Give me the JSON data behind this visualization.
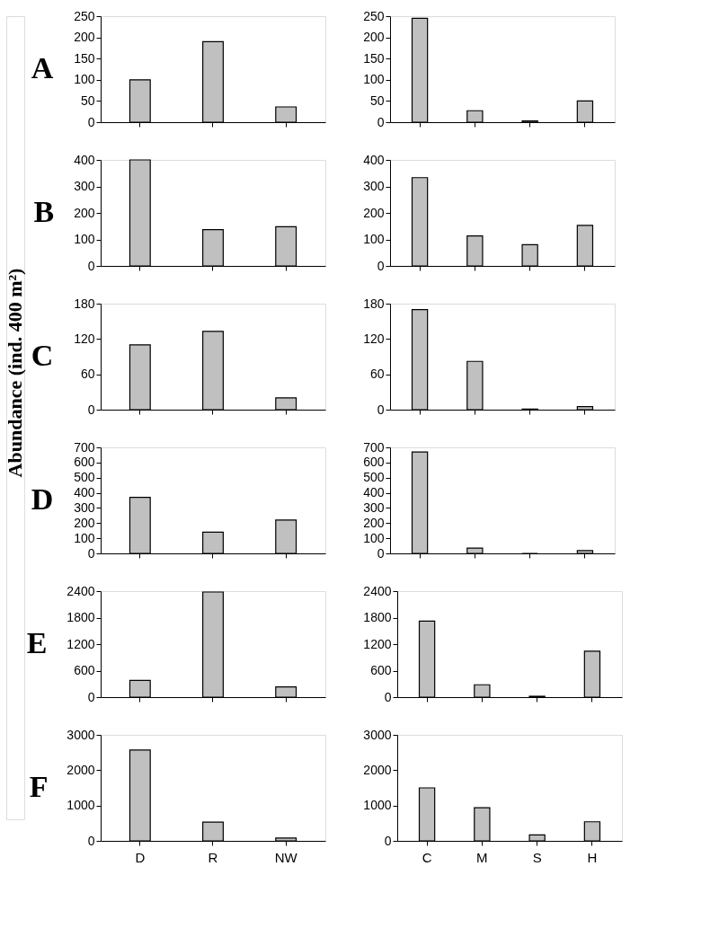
{
  "chart_data": [
    {
      "type": "bar",
      "title": "A",
      "categories": [
        null,
        null,
        null
      ],
      "values": [
        100,
        190,
        36
      ],
      "color": "#c0c0c0",
      "ylim": [
        0,
        250
      ],
      "yticks": [
        0,
        50,
        100,
        150,
        200,
        250
      ],
      "grid": false,
      "tick_labels": "y"
    },
    {
      "type": "bar",
      "categories": [
        null,
        null,
        null,
        null
      ],
      "values": [
        245,
        27,
        3,
        50
      ],
      "color": "#c0c0c0",
      "ylim": [
        0,
        250
      ],
      "yticks": [
        0,
        50,
        100,
        150,
        200,
        250
      ],
      "grid": false,
      "tick_labels": "y"
    },
    {
      "type": "bar",
      "title": "B",
      "categories": [
        null,
        null,
        null
      ],
      "values": [
        400,
        137,
        148
      ],
      "color": "#c0c0c0",
      "ylim": [
        0,
        400
      ],
      "yticks": [
        0,
        100,
        200,
        300,
        400
      ],
      "grid": false,
      "tick_labels": "y"
    },
    {
      "type": "bar",
      "categories": [
        null,
        null,
        null,
        null
      ],
      "values": [
        333,
        113,
        80,
        153
      ],
      "color": "#c0c0c0",
      "ylim": [
        0,
        400
      ],
      "yticks": [
        0,
        100,
        200,
        300,
        400
      ],
      "grid": false,
      "tick_labels": "y"
    },
    {
      "type": "bar",
      "title": "C",
      "ylabel": "Abundance (ind. 400 m²)",
      "categories": [
        null,
        null,
        null
      ],
      "values": [
        110,
        133,
        20
      ],
      "color": "#c0c0c0",
      "ylim": [
        0,
        180
      ],
      "yticks": [
        0,
        60,
        120,
        180
      ],
      "grid": false,
      "tick_labels": "y"
    },
    {
      "type": "bar",
      "categories": [
        null,
        null,
        null,
        null
      ],
      "values": [
        170,
        82,
        1,
        5
      ],
      "color": "#c0c0c0",
      "ylim": [
        0,
        180
      ],
      "yticks": [
        0,
        60,
        120,
        180
      ],
      "grid": false,
      "tick_labels": "y"
    },
    {
      "type": "bar",
      "title": "D",
      "categories": [
        null,
        null,
        null
      ],
      "values": [
        370,
        140,
        220
      ],
      "color": "#c0c0c0",
      "ylim": [
        0,
        700
      ],
      "yticks": [
        0,
        100,
        200,
        300,
        400,
        500,
        600,
        700
      ],
      "grid": false,
      "tick_labels": "y"
    },
    {
      "type": "bar",
      "categories": [
        null,
        null,
        null,
        null
      ],
      "values": [
        670,
        35,
        0,
        18
      ],
      "color": "#c0c0c0",
      "ylim": [
        0,
        700
      ],
      "yticks": [
        0,
        100,
        200,
        300,
        400,
        500,
        600,
        700
      ],
      "grid": false,
      "tick_labels": "y"
    },
    {
      "type": "bar",
      "title": "E",
      "categories": [
        null,
        null,
        null
      ],
      "values": [
        380,
        2380,
        230
      ],
      "color": "#c0c0c0",
      "ylim": [
        0,
        2400
      ],
      "yticks": [
        0,
        600,
        1200,
        1800,
        2400
      ],
      "grid": false,
      "tick_labels": "y"
    },
    {
      "type": "bar",
      "categories": [
        null,
        null,
        null,
        null
      ],
      "values": [
        1720,
        280,
        20,
        1040
      ],
      "color": "#c0c0c0",
      "ylim": [
        0,
        2400
      ],
      "yticks": [
        0,
        600,
        1200,
        1800,
        2400
      ],
      "grid": false,
      "tick_labels": "y"
    },
    {
      "type": "bar",
      "title": "F",
      "categories": [
        "D",
        "R",
        "NW"
      ],
      "values": [
        2570,
        530,
        80
      ],
      "color": "#c0c0c0",
      "ylim": [
        0,
        3000
      ],
      "yticks": [
        0,
        1000,
        2000,
        3000
      ],
      "grid": false
    },
    {
      "type": "bar",
      "categories": [
        "C",
        "M",
        "S",
        "H"
      ],
      "values": [
        1500,
        940,
        170,
        540
      ],
      "color": "#c0c0c0",
      "ylim": [
        0,
        3000
      ],
      "yticks": [
        0,
        1000,
        2000,
        3000
      ],
      "grid": false
    }
  ]
}
